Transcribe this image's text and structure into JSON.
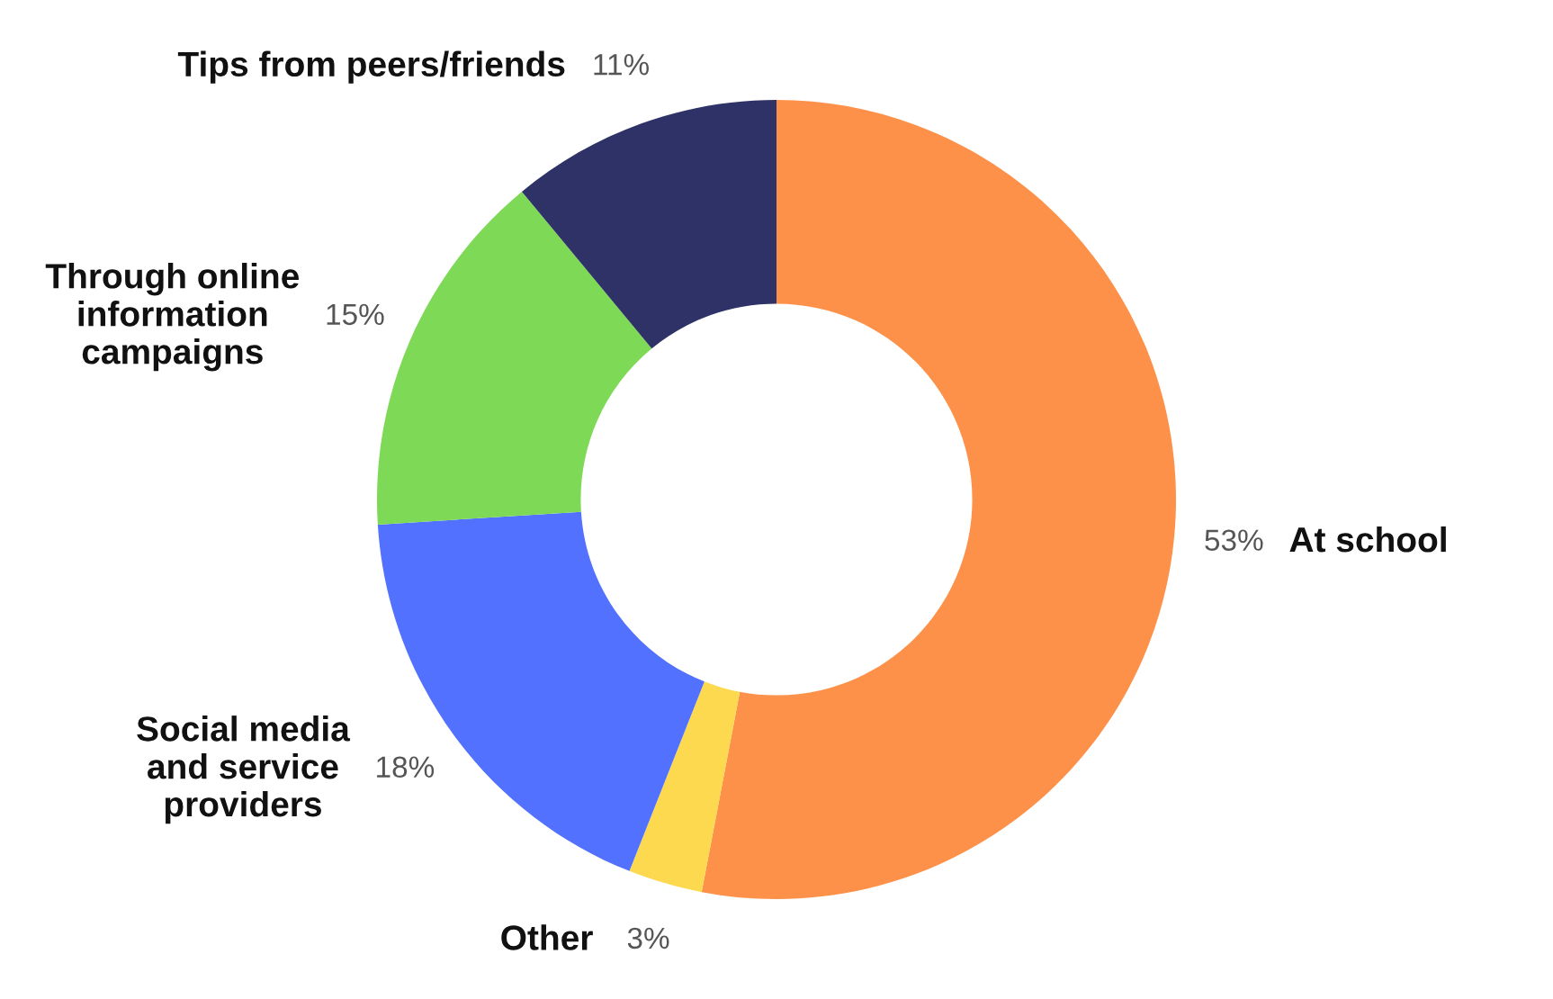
{
  "chart_data": {
    "type": "donut",
    "categories": [
      "At school",
      "Other",
      "Social media\nand service\nproviders",
      "Through online\ninformation\ncampaigns",
      "Tips from peers/friends"
    ],
    "values": [
      53,
      3,
      18,
      15,
      11
    ],
    "value_labels": [
      "53%",
      "3%",
      "18%",
      "15%",
      "11%"
    ],
    "colors": [
      "#fd9149",
      "#fdd94f",
      "#5271ff",
      "#7ed957",
      "#2f3266"
    ],
    "legend": false
  }
}
